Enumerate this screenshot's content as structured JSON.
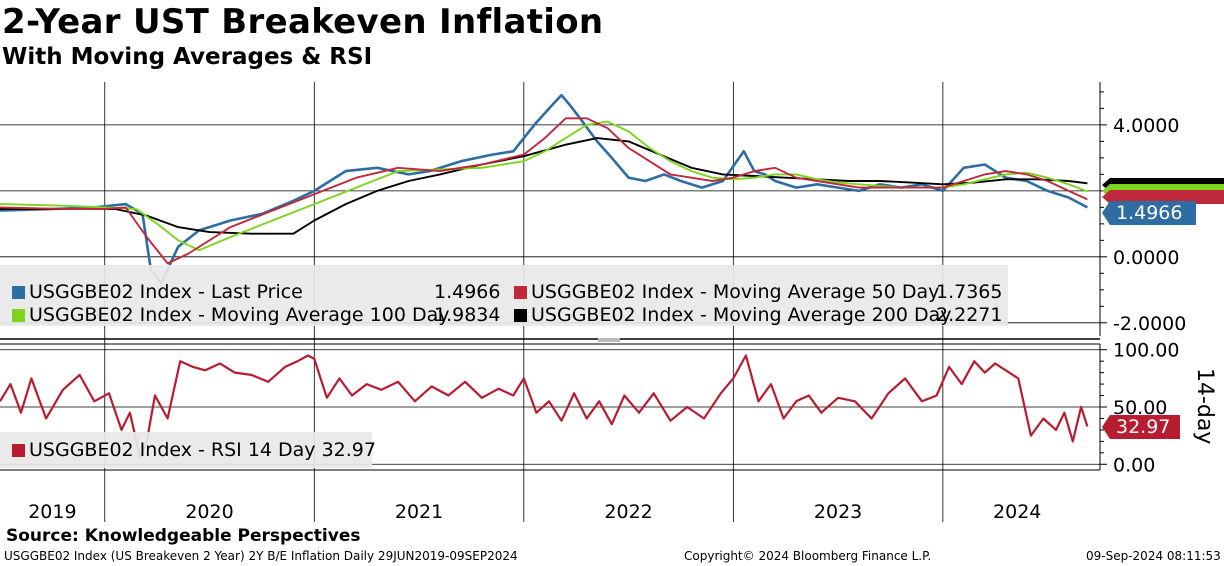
{
  "header": {
    "title": "2-Year UST Breakeven Inflation",
    "subtitle": "With Moving Averages & RSI"
  },
  "legend": {
    "last_price": "USGGBE02 Index - Last Price",
    "last_price_value": "1.4966",
    "ma50": "USGGBE02 Index - Moving Average 50 Day",
    "ma50_value": "1.7365",
    "ma100": "USGGBE02 Index - Moving Average 100 Day",
    "ma100_value": "1.9834",
    "ma200": "USGGBE02 Index - Moving Average 200 Day",
    "ma200_value": "2.2271",
    "rsi": "USGGBE02 Index - RSI 14 Day 32.97"
  },
  "tags": {
    "price": "1.4966",
    "rsi": "32.97"
  },
  "rsi_axis_label": "14-day",
  "source": "Source: Knowledgeable Perspectives",
  "footer": {
    "left": "USGGBE02 Index (US Breakeven 2 Year) 2Y B/E Inflation  Daily 29JUN2019-09SEP2024",
    "center": "Copyright© 2024 Bloomberg Finance L.P.",
    "right": "09-Sep-2024 08:11:53"
  },
  "colors": {
    "price": "#2e6da4",
    "ma50": "#c0283c",
    "ma100": "#7ed31c",
    "ma200": "#000000",
    "rsi": "#b81c30",
    "grid": "#000000"
  },
  "chart_data": [
    {
      "type": "line",
      "ylim": [
        -2.4,
        5.3
      ],
      "yticks": [
        "4.0000",
        "0.0000",
        "-2.0000"
      ],
      "xticks": [
        "2019",
        "2020",
        "2021",
        "2022",
        "2023",
        "2024"
      ],
      "series": [
        {
          "name": "USGGBE02 Index - Last Price",
          "x": [
            2019.5,
            2019.75,
            2019.95,
            2020.1,
            2020.18,
            2020.22,
            2020.27,
            2020.35,
            2020.45,
            2020.6,
            2020.75,
            2020.9,
            2021.0,
            2021.15,
            2021.3,
            2021.45,
            2021.55,
            2021.7,
            2021.85,
            2021.95,
            2022.05,
            2022.15,
            2022.18,
            2022.22,
            2022.28,
            2022.35,
            2022.42,
            2022.5,
            2022.58,
            2022.67,
            2022.75,
            2022.85,
            2022.95,
            2023.05,
            2023.1,
            2023.15,
            2023.2,
            2023.3,
            2023.4,
            2023.5,
            2023.6,
            2023.7,
            2023.8,
            2023.9,
            2024.0,
            2024.1,
            2024.2,
            2024.3,
            2024.4,
            2024.5,
            2024.6,
            2024.69
          ],
          "y": [
            1.4,
            1.45,
            1.5,
            1.6,
            1.3,
            -0.4,
            -0.8,
            0.3,
            0.8,
            1.1,
            1.3,
            1.7,
            2.0,
            2.6,
            2.7,
            2.5,
            2.6,
            2.9,
            3.1,
            3.2,
            4.0,
            4.7,
            4.9,
            4.6,
            4.1,
            3.5,
            3.0,
            2.4,
            2.3,
            2.5,
            2.3,
            2.1,
            2.3,
            3.2,
            2.6,
            2.5,
            2.3,
            2.1,
            2.2,
            2.1,
            2.0,
            2.2,
            2.1,
            2.2,
            2.0,
            2.7,
            2.8,
            2.4,
            2.3,
            2.0,
            1.8,
            1.5
          ]
        },
        {
          "name": "USGGBE02 Index - Moving Average 50 Day",
          "x": [
            2019.5,
            2019.8,
            2020.0,
            2020.1,
            2020.2,
            2020.3,
            2020.4,
            2020.6,
            2020.8,
            2021.0,
            2021.2,
            2021.4,
            2021.6,
            2021.8,
            2022.0,
            2022.1,
            2022.2,
            2022.3,
            2022.4,
            2022.5,
            2022.6,
            2022.7,
            2022.8,
            2022.9,
            2023.0,
            2023.1,
            2023.2,
            2023.3,
            2023.4,
            2023.5,
            2023.6,
            2023.7,
            2023.8,
            2023.9,
            2024.0,
            2024.1,
            2024.2,
            2024.3,
            2024.4,
            2024.5,
            2024.6,
            2024.69
          ],
          "y": [
            1.5,
            1.45,
            1.45,
            1.5,
            0.6,
            -0.2,
            0.1,
            0.9,
            1.4,
            1.9,
            2.4,
            2.7,
            2.6,
            2.8,
            3.1,
            3.6,
            4.2,
            4.2,
            3.9,
            3.3,
            2.9,
            2.5,
            2.4,
            2.3,
            2.4,
            2.6,
            2.7,
            2.4,
            2.3,
            2.2,
            2.1,
            2.1,
            2.1,
            2.1,
            2.1,
            2.3,
            2.5,
            2.6,
            2.5,
            2.3,
            2.0,
            1.74
          ]
        },
        {
          "name": "USGGBE02 Index - Moving Average 100 Day",
          "x": [
            2019.5,
            2019.8,
            2020.0,
            2020.15,
            2020.25,
            2020.35,
            2020.45,
            2020.6,
            2020.8,
            2021.0,
            2021.2,
            2021.4,
            2021.6,
            2021.8,
            2022.0,
            2022.1,
            2022.2,
            2022.3,
            2022.4,
            2022.5,
            2022.6,
            2022.7,
            2022.8,
            2022.9,
            2023.0,
            2023.1,
            2023.2,
            2023.3,
            2023.4,
            2023.5,
            2023.6,
            2023.7,
            2023.8,
            2023.9,
            2024.0,
            2024.1,
            2024.2,
            2024.3,
            2024.4,
            2024.5,
            2024.6,
            2024.69
          ],
          "y": [
            1.6,
            1.55,
            1.5,
            1.45,
            1.0,
            0.5,
            0.2,
            0.6,
            1.1,
            1.6,
            2.1,
            2.6,
            2.65,
            2.7,
            2.9,
            3.2,
            3.6,
            4.0,
            4.1,
            3.8,
            3.3,
            2.9,
            2.6,
            2.4,
            2.35,
            2.4,
            2.5,
            2.5,
            2.35,
            2.25,
            2.2,
            2.15,
            2.1,
            2.1,
            2.1,
            2.2,
            2.35,
            2.5,
            2.55,
            2.4,
            2.2,
            1.98
          ]
        },
        {
          "name": "USGGBE02 Index - Moving Average 200 Day",
          "x": [
            2019.5,
            2019.7,
            2019.9,
            2020.05,
            2020.2,
            2020.35,
            2020.5,
            2020.7,
            2020.9,
            2021.0,
            2021.15,
            2021.3,
            2021.45,
            2021.6,
            2021.8,
            2022.0,
            2022.2,
            2022.35,
            2022.5,
            2022.65,
            2022.8,
            2022.95,
            2023.1,
            2023.25,
            2023.4,
            2023.55,
            2023.7,
            2023.85,
            2024.0,
            2024.15,
            2024.3,
            2024.45,
            2024.6,
            2024.69
          ],
          "y": [
            1.45,
            1.45,
            1.45,
            1.45,
            1.25,
            0.9,
            0.75,
            0.7,
            0.7,
            1.1,
            1.6,
            2.0,
            2.3,
            2.5,
            2.8,
            3.05,
            3.4,
            3.6,
            3.5,
            3.1,
            2.7,
            2.5,
            2.45,
            2.4,
            2.35,
            2.3,
            2.3,
            2.25,
            2.2,
            2.25,
            2.35,
            2.35,
            2.3,
            2.23
          ]
        }
      ]
    },
    {
      "type": "line",
      "ylim": [
        -5,
        105
      ],
      "yticks": [
        "100.00",
        "50.00",
        "0.00"
      ],
      "series": [
        {
          "name": "USGGBE02 Index - RSI 14 Day",
          "x": [
            2019.5,
            2019.55,
            2019.6,
            2019.65,
            2019.72,
            2019.8,
            2019.88,
            2019.95,
            2020.02,
            2020.08,
            2020.12,
            2020.17,
            2020.2,
            2020.24,
            2020.3,
            2020.36,
            2020.42,
            2020.48,
            2020.55,
            2020.62,
            2020.7,
            2020.78,
            2020.86,
            2020.92,
            2020.97,
            2021.0,
            2021.06,
            2021.12,
            2021.18,
            2021.25,
            2021.32,
            2021.4,
            2021.48,
            2021.56,
            2021.64,
            2021.72,
            2021.8,
            2021.88,
            2021.95,
            2022.0,
            2022.06,
            2022.12,
            2022.18,
            2022.24,
            2022.3,
            2022.36,
            2022.42,
            2022.48,
            2022.55,
            2022.62,
            2022.7,
            2022.78,
            2022.86,
            2022.94,
            2023.0,
            2023.06,
            2023.12,
            2023.18,
            2023.24,
            2023.3,
            2023.36,
            2023.42,
            2023.5,
            2023.58,
            2023.66,
            2023.74,
            2023.82,
            2023.9,
            2023.97,
            2024.03,
            2024.09,
            2024.15,
            2024.2,
            2024.25,
            2024.3,
            2024.36,
            2024.42,
            2024.48,
            2024.54,
            2024.58,
            2024.62,
            2024.66,
            2024.69
          ],
          "y": [
            55,
            70,
            45,
            75,
            40,
            65,
            78,
            55,
            62,
            30,
            45,
            5,
            20,
            60,
            40,
            90,
            85,
            82,
            88,
            80,
            78,
            72,
            85,
            90,
            95,
            92,
            58,
            75,
            60,
            70,
            65,
            72,
            55,
            68,
            60,
            72,
            58,
            66,
            60,
            75,
            45,
            55,
            38,
            62,
            40,
            55,
            35,
            60,
            45,
            62,
            38,
            50,
            40,
            62,
            75,
            95,
            55,
            70,
            40,
            55,
            60,
            45,
            58,
            55,
            40,
            62,
            75,
            55,
            60,
            85,
            70,
            90,
            80,
            88,
            82,
            75,
            25,
            40,
            30,
            45,
            20,
            50,
            33
          ]
        }
      ]
    }
  ]
}
